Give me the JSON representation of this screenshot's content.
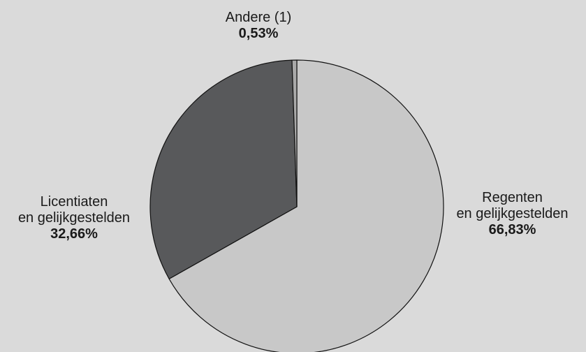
{
  "chart_data": {
    "type": "pie",
    "title": "",
    "slices": [
      {
        "label_lines": [
          "Regenten",
          "en gelijkgestelden"
        ],
        "value": 66.83,
        "value_text": "66,83%",
        "color": "#c8c8c8"
      },
      {
        "label_lines": [
          "Licentiaten",
          "en gelijkgestelden"
        ],
        "value": 32.66,
        "value_text": "32,66%",
        "color": "#58595b"
      },
      {
        "label_lines": [
          "Andere (1)"
        ],
        "value": 0.53,
        "value_text": "0,53%",
        "color": "#a9a9a9"
      }
    ],
    "start_angle_deg": 0,
    "direction": "clockwise",
    "outline_color": "#111111",
    "background_color": "#dadada"
  }
}
